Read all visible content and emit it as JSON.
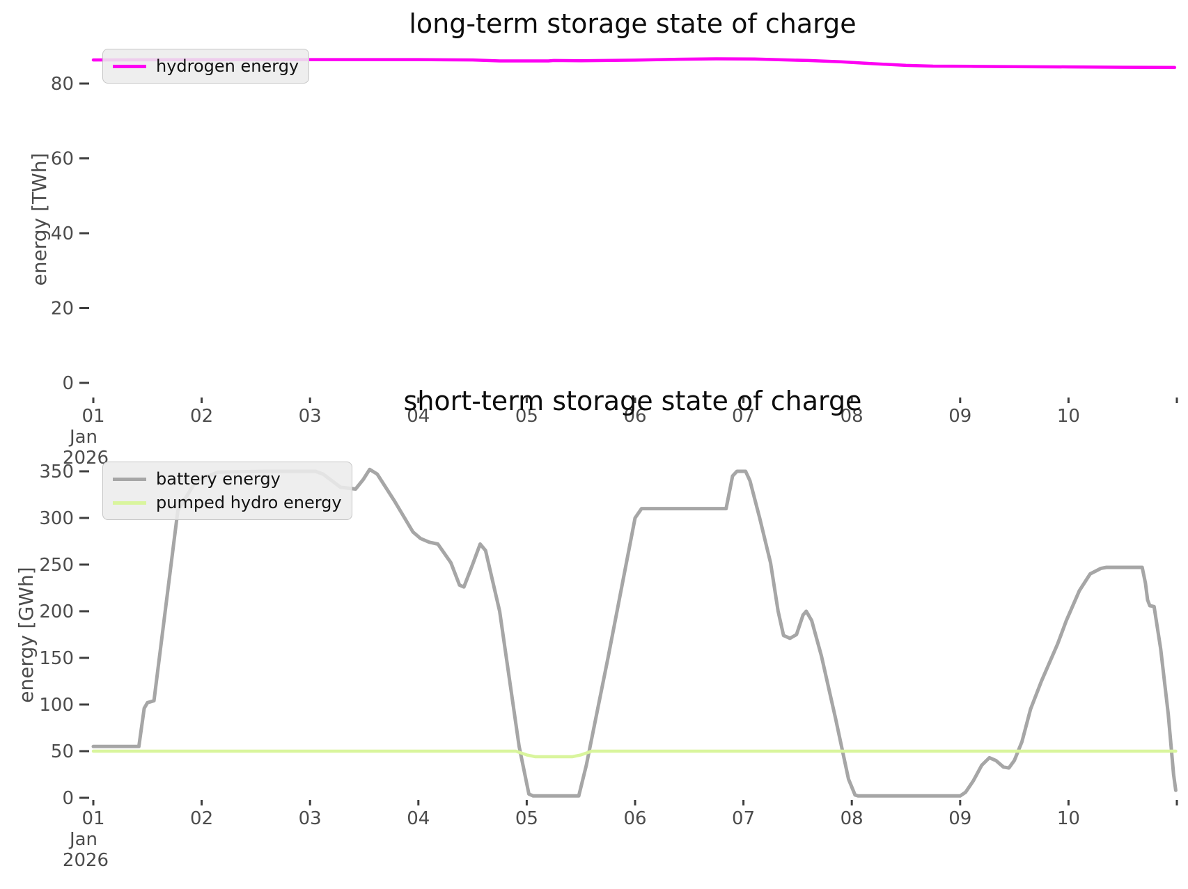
{
  "figure": {
    "background": "#ffffff"
  },
  "chart_data": [
    {
      "type": "line",
      "title": "long-term storage state of charge",
      "xlabel": "",
      "ylabel": "energy [TWh]",
      "x_tick_labels": [
        "01",
        "02",
        "03",
        "04",
        "05",
        "06",
        "07",
        "08",
        "09",
        "10"
      ],
      "x_sub_label_month": "Jan",
      "x_sub_label_year": "2026",
      "y_ticks": [
        0,
        20,
        40,
        60,
        80
      ],
      "xlim": [
        "2026-01-01",
        "2026-01-11"
      ],
      "ylim": [
        -4,
        91
      ],
      "grid": false,
      "legend_position": "upper left",
      "series": [
        {
          "name": "hydrogen energy",
          "color": "#fd00f3",
          "line_width": 4.5,
          "unit": "TWh",
          "points": [
            [
              1.0,
              86.3
            ],
            [
              2.0,
              86.4
            ],
            [
              3.0,
              86.4
            ],
            [
              4.0,
              86.4
            ],
            [
              4.5,
              86.3
            ],
            [
              4.75,
              86.05
            ],
            [
              5.2,
              86.05
            ],
            [
              5.25,
              86.15
            ],
            [
              5.5,
              86.1
            ],
            [
              6.0,
              86.25
            ],
            [
              6.4,
              86.5
            ],
            [
              6.75,
              86.6
            ],
            [
              7.1,
              86.55
            ],
            [
              7.35,
              86.35
            ],
            [
              7.6,
              86.15
            ],
            [
              7.9,
              85.8
            ],
            [
              8.2,
              85.3
            ],
            [
              8.5,
              84.85
            ],
            [
              8.75,
              84.65
            ],
            [
              9.1,
              84.6
            ],
            [
              9.5,
              84.5
            ],
            [
              10.0,
              84.45
            ],
            [
              10.5,
              84.35
            ],
            [
              10.98,
              84.3
            ]
          ]
        }
      ]
    },
    {
      "type": "line",
      "title": "short-term storage state of charge",
      "xlabel": "",
      "ylabel": "energy [GWh]",
      "x_tick_labels": [
        "01",
        "02",
        "03",
        "04",
        "05",
        "06",
        "07",
        "08",
        "09",
        "10"
      ],
      "x_sub_label_month": "Jan",
      "x_sub_label_year": "2026",
      "y_ticks": [
        0,
        50,
        100,
        150,
        200,
        250,
        300,
        350
      ],
      "xlim": [
        "2026-01-01",
        "2026-01-11"
      ],
      "ylim": [
        0,
        355
      ],
      "grid": false,
      "legend_position": "upper left",
      "series": [
        {
          "name": "battery energy",
          "color": "#a6a6a6",
          "line_width": 5,
          "unit": "GWh",
          "points": [
            [
              1.0,
              55
            ],
            [
              1.42,
              55
            ],
            [
              1.47,
              96
            ],
            [
              1.5,
              102
            ],
            [
              1.56,
              104
            ],
            [
              1.78,
              308
            ],
            [
              1.95,
              340
            ],
            [
              2.15,
              349
            ],
            [
              2.6,
              350
            ],
            [
              3.05,
              350
            ],
            [
              3.12,
              347
            ],
            [
              3.28,
              333
            ],
            [
              3.42,
              331
            ],
            [
              3.49,
              341
            ],
            [
              3.55,
              352
            ],
            [
              3.62,
              347
            ],
            [
              3.78,
              318
            ],
            [
              3.95,
              285
            ],
            [
              4.02,
              278
            ],
            [
              4.1,
              274
            ],
            [
              4.18,
              272
            ],
            [
              4.3,
              252
            ],
            [
              4.38,
              228
            ],
            [
              4.42,
              226
            ],
            [
              4.5,
              250
            ],
            [
              4.57,
              272
            ],
            [
              4.62,
              265
            ],
            [
              4.75,
              200
            ],
            [
              4.93,
              55
            ],
            [
              5.02,
              4
            ],
            [
              5.06,
              2
            ],
            [
              5.48,
              2
            ],
            [
              5.55,
              35
            ],
            [
              5.75,
              150
            ],
            [
              6.0,
              300
            ],
            [
              6.06,
              310
            ],
            [
              6.5,
              310
            ],
            [
              6.84,
              310
            ],
            [
              6.9,
              345
            ],
            [
              6.94,
              350
            ],
            [
              7.02,
              350
            ],
            [
              7.06,
              340
            ],
            [
              7.15,
              300
            ],
            [
              7.25,
              252
            ],
            [
              7.32,
              200
            ],
            [
              7.37,
              174
            ],
            [
              7.43,
              171
            ],
            [
              7.49,
              175
            ],
            [
              7.55,
              196
            ],
            [
              7.58,
              200
            ],
            [
              7.63,
              190
            ],
            [
              7.72,
              152
            ],
            [
              7.85,
              85
            ],
            [
              7.97,
              20
            ],
            [
              8.03,
              3
            ],
            [
              8.06,
              2
            ],
            [
              9.0,
              2
            ],
            [
              9.05,
              6
            ],
            [
              9.12,
              18
            ],
            [
              9.2,
              35
            ],
            [
              9.27,
              43
            ],
            [
              9.33,
              40
            ],
            [
              9.4,
              33
            ],
            [
              9.45,
              32
            ],
            [
              9.5,
              40
            ],
            [
              9.57,
              60
            ],
            [
              9.65,
              95
            ],
            [
              9.75,
              125
            ],
            [
              9.9,
              165
            ],
            [
              9.98,
              190
            ],
            [
              10.1,
              222
            ],
            [
              10.2,
              240
            ],
            [
              10.3,
              246
            ],
            [
              10.35,
              247
            ],
            [
              10.68,
              247
            ],
            [
              10.71,
              230
            ],
            [
              10.73,
              212
            ],
            [
              10.75,
              206
            ],
            [
              10.79,
              205
            ],
            [
              10.85,
              160
            ],
            [
              10.92,
              90
            ],
            [
              10.97,
              25
            ],
            [
              10.99,
              8
            ]
          ]
        },
        {
          "name": "pumped hydro energy",
          "color": "#d9f59d",
          "line_width": 4.5,
          "unit": "GWh",
          "points": [
            [
              1.0,
              50
            ],
            [
              4.9,
              50
            ],
            [
              5.0,
              46
            ],
            [
              5.08,
              44
            ],
            [
              5.42,
              44
            ],
            [
              5.5,
              46
            ],
            [
              5.6,
              50
            ],
            [
              10.99,
              50
            ]
          ]
        }
      ]
    }
  ]
}
